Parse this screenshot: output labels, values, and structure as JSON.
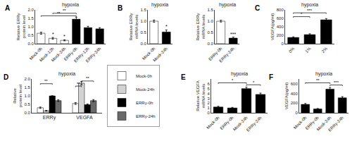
{
  "chart_data": [
    {
      "type": "bar",
      "title": "hypoxia",
      "categories": [
        "Mock-0h",
        "Mock-12h",
        "Mock-24h",
        "ERRy-0h",
        "ERRy-12h",
        "ERRy-24h"
      ],
      "values": [
        0.62,
        0.32,
        0.2,
        1.45,
        0.95,
        0.88
      ],
      "errors": [
        0.06,
        0.05,
        0.03,
        0.12,
        0.08,
        0.07
      ],
      "colors": [
        "white",
        "white",
        "white",
        "black",
        "black",
        "black"
      ],
      "ylabel": "Relative ERRy protein level",
      "ylim": [
        0.0,
        2.0
      ],
      "yticks": [
        {
          "value": 0,
          "label": "0.0"
        },
        0.5,
        {
          "value": 1,
          "label": "1.0"
        },
        1.5,
        {
          "value": 2,
          "label": "2.0"
        }
      ],
      "grid": false,
      "annotations": [
        {
          "text": "A"
        },
        {
          "from": "Mock-0h",
          "to": "ERRy-0h",
          "y": 1.65,
          "text": "**"
        },
        {
          "from": "Mock-12h",
          "to": "ERRy-0h",
          "y": 1.8,
          "text": "**"
        },
        {
          "category": "Mock-12h",
          "text": "*"
        },
        {
          "category": "Mock-24h",
          "text": "*"
        }
      ]
    },
    {
      "type": "bar",
      "title": "hypoxia",
      "categories": [
        "Mock-0h",
        "Mock-24h"
      ],
      "values": [
        1.0,
        0.52
      ],
      "errors": [
        0.05,
        0.09
      ],
      "colors": [
        "white",
        "black"
      ],
      "ylabel": "Relative ERRy mRNA levels",
      "ylim": [
        0,
        1.5
      ],
      "yticks": [
        {
          "value": 0,
          "label": "0.0"
        },
        0.5,
        {
          "value": 1,
          "label": "1.0"
        },
        1.5
      ],
      "grid": false,
      "annotations": [
        {
          "text": "B"
        },
        {
          "category": "Mock-24h",
          "text": "*"
        }
      ]
    },
    {
      "type": "bar",
      "title": "hypoxia",
      "categories": [
        "ERRy-0h",
        "ERRy-24h"
      ],
      "values": [
        1.0,
        0.25
      ],
      "errors": [
        0.04,
        0.04
      ],
      "colors": [
        "white",
        "black"
      ],
      "ylabel": "Relative ERRy mRNA levels",
      "ylim": [
        0,
        1.5
      ],
      "yticks": [
        {
          "value": 0,
          "label": "0.0"
        },
        0.5,
        {
          "value": 1,
          "label": "1.0"
        },
        1.5
      ],
      "grid": false,
      "annotations": [
        {
          "category": "ERRy-24h",
          "text": "***"
        }
      ]
    },
    {
      "type": "bar",
      "title": "hypoxia",
      "categories": [
        "0%",
        "1%",
        "2%"
      ],
      "values": [
        148,
        215,
        565
      ],
      "errors": [
        15,
        20,
        30
      ],
      "colors": [
        "black",
        "black",
        "black"
      ],
      "ylabel": "VEGFA(pg/ml)",
      "ylim": [
        0,
        800
      ],
      "yticks": [
        0,
        200,
        400,
        600,
        800
      ],
      "grid": false,
      "annotations": [
        {
          "text": "C"
        },
        {
          "from": "0%",
          "to": "2%",
          "y": 730,
          "text": "***"
        },
        {
          "from": "0%",
          "to": "1%",
          "y": 640,
          "text": "*"
        }
      ]
    },
    {
      "type": "bar",
      "title": "hypoxia",
      "categories": [
        "ERRy",
        "VEGFA"
      ],
      "series": [
        {
          "name": "Mock-0h",
          "color": "white",
          "values": [
            0.3,
            0.55
          ],
          "errors": [
            0.04,
            0.05
          ]
        },
        {
          "name": "Mock-24h",
          "color": "lightgray",
          "values": [
            0.12,
            1.75
          ],
          "errors": [
            0.02,
            0.1
          ]
        },
        {
          "name": "ERRy-0h",
          "color": "black",
          "values": [
            1.0,
            0.48
          ],
          "errors": [
            0.0,
            0.04
          ]
        },
        {
          "name": "ERRy-24h",
          "color": "dimgray",
          "values": [
            0.72,
            0.72
          ],
          "errors": [
            0.05,
            0.06
          ]
        }
      ],
      "ylabel": "Relative protein level",
      "ylim": [
        0.0,
        2.0
      ],
      "yticks": [
        {
          "value": 0,
          "label": "0.0"
        },
        0.5,
        {
          "value": 1,
          "label": "1.0"
        },
        1.5,
        {
          "value": 2,
          "label": "2.0"
        }
      ],
      "grid": false,
      "legend": "right",
      "annotations": [
        {
          "text": "D"
        },
        {
          "group": "ERRy",
          "from": "Mock-0h",
          "to": "ERRy-0h",
          "y": 1.72,
          "text": "**"
        },
        {
          "group": "VEGFA",
          "from": "Mock-24h",
          "to": "ERRy-24h",
          "y": 1.88,
          "text": "**"
        },
        {
          "group": "VEGFA",
          "from": "Mock-0h",
          "to": "Mock-24h",
          "y": 1.58,
          "text": "**"
        }
      ]
    },
    {
      "type": "bar",
      "title": "hypoxia",
      "categories": [
        "Mock-0h",
        "ERRy-0h",
        "Mock-24h",
        "ERRy-24h"
      ],
      "values": [
        1.2,
        1.0,
        5.0,
        3.8
      ],
      "errors": [
        0.15,
        0.12,
        0.3,
        0.28
      ],
      "colors": [
        "black",
        "black",
        "black",
        "black"
      ],
      "ylabel": "Relative VEGFA mRNA levels",
      "ylim": [
        0,
        7
      ],
      "yticks": [
        0,
        1,
        2,
        3,
        4,
        5,
        6
      ],
      "grid": false,
      "annotations": [
        {
          "text": "E"
        },
        {
          "from": "Mock-0h",
          "to": "Mock-24h",
          "y": 6.2,
          "text": "*"
        },
        {
          "from": "Mock-24h",
          "to": "ERRy-24h",
          "y": 5.8,
          "text": "*"
        }
      ]
    },
    {
      "type": "bar",
      "title": "hypoxia",
      "categories": [
        "Mock-0h",
        "ERRy-0h",
        "Mock-24h",
        "ERRy-24h"
      ],
      "values": [
        175,
        80,
        490,
        310
      ],
      "errors": [
        18,
        10,
        35,
        25
      ],
      "colors": [
        "black",
        "black",
        "black",
        "black"
      ],
      "ylabel": "VEGFA(pg/ml)",
      "ylim": [
        0,
        700
      ],
      "yticks": [
        0,
        200,
        400,
        600
      ],
      "grid": false,
      "annotations": [
        {
          "text": "F"
        },
        {
          "from": "Mock-0h",
          "to": "Mock-24h",
          "y": 620,
          "text": "**"
        },
        {
          "from": "Mock-24h",
          "to": "ERRy-24h",
          "y": 575,
          "text": "***"
        }
      ]
    }
  ]
}
